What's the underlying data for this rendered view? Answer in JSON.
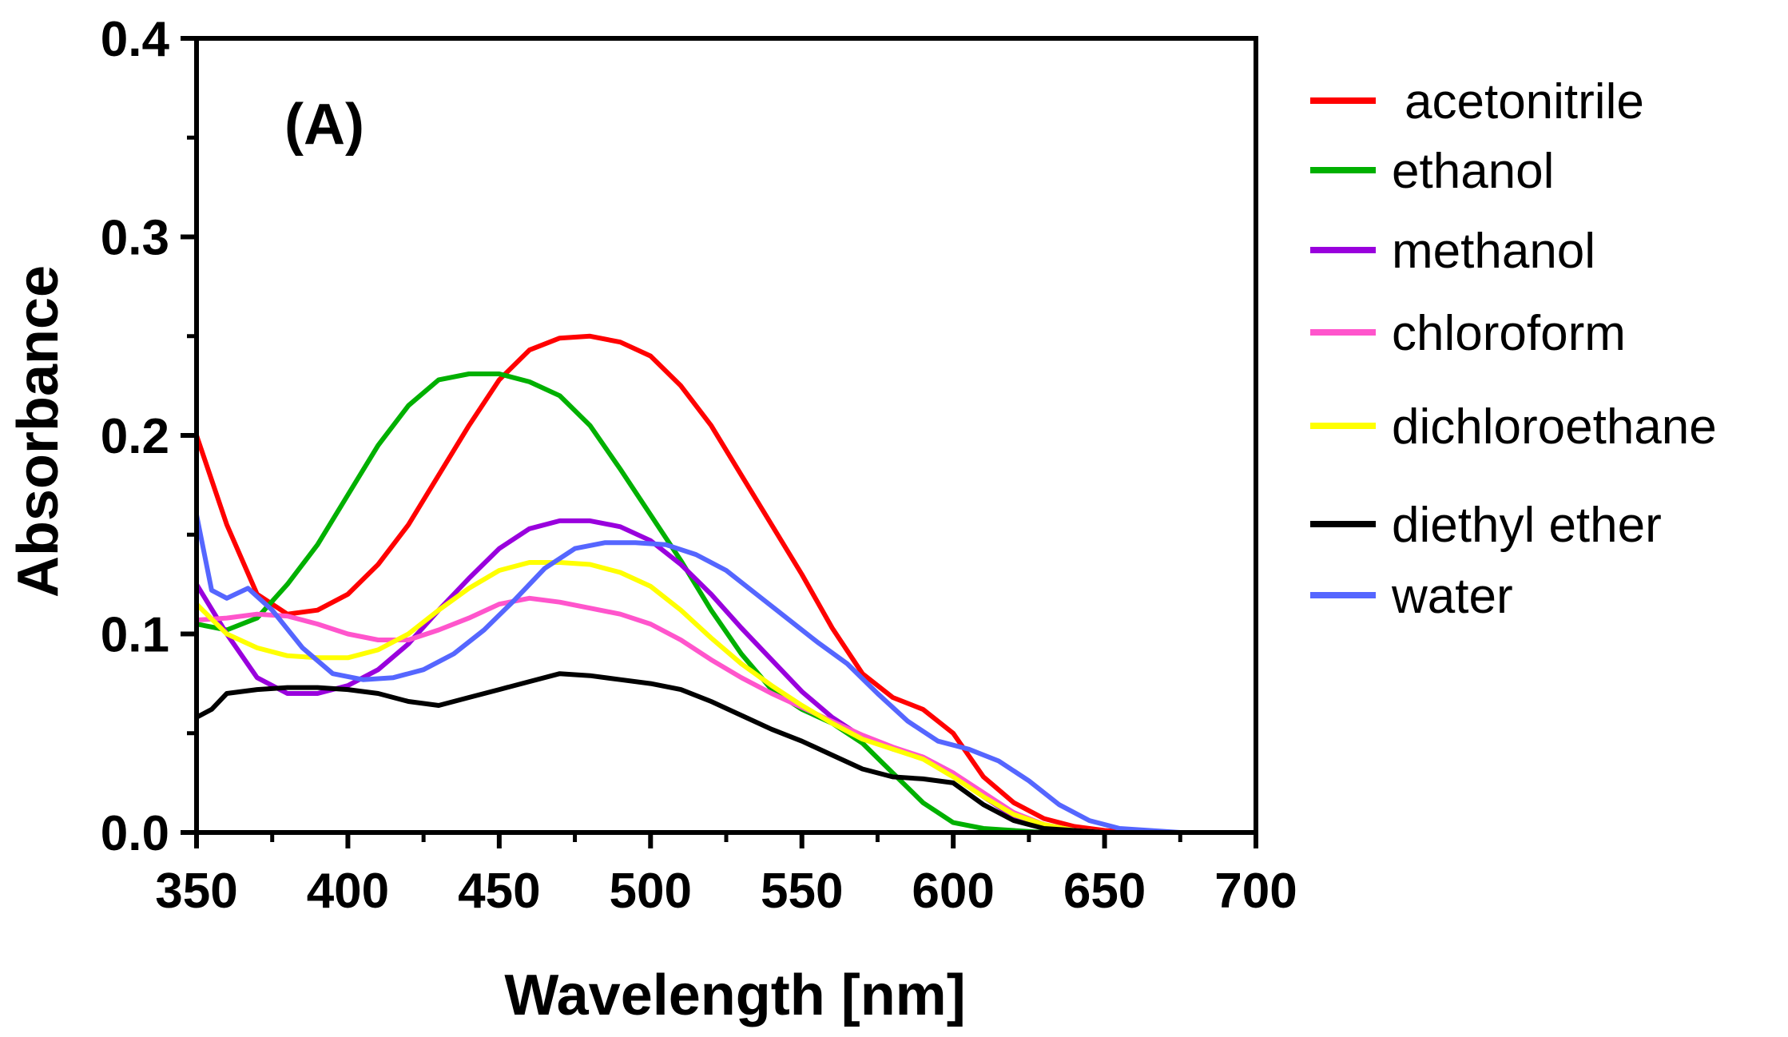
{
  "chart_data": {
    "type": "line",
    "title": "",
    "panel_label": "(A)",
    "xlabel": "Wavelength [nm]",
    "ylabel": "Absorbance",
    "xlim": [
      350,
      700
    ],
    "ylim": [
      0,
      0.4
    ],
    "x_ticks": [
      350,
      400,
      450,
      500,
      550,
      600,
      650,
      700
    ],
    "x_tick_labels": [
      "350",
      "400",
      "450",
      "500",
      "550",
      "600",
      "650",
      "700"
    ],
    "y_ticks": [
      0,
      0.1,
      0.2,
      0.3,
      0.4
    ],
    "y_tick_labels": [
      "0.0",
      "0.1",
      "0.2",
      "0.3",
      "0.4"
    ],
    "grid": false,
    "legend_position": "right",
    "series": [
      {
        "name": "acetonitrile",
        "color": "#ff0000",
        "x": [
          350,
          360,
          370,
          380,
          390,
          400,
          410,
          420,
          430,
          440,
          450,
          460,
          470,
          480,
          490,
          500,
          510,
          520,
          530,
          540,
          550,
          560,
          570,
          580,
          590,
          600,
          610,
          620,
          630,
          640,
          650,
          660,
          670
        ],
        "y": [
          0.2,
          0.155,
          0.12,
          0.11,
          0.112,
          0.12,
          0.135,
          0.155,
          0.18,
          0.205,
          0.228,
          0.243,
          0.249,
          0.25,
          0.247,
          0.24,
          0.225,
          0.205,
          0.18,
          0.155,
          0.13,
          0.103,
          0.08,
          0.068,
          0.062,
          0.05,
          0.028,
          0.015,
          0.007,
          0.003,
          0.001,
          0.0,
          0.0
        ]
      },
      {
        "name": "ethanol",
        "color": "#00b000",
        "x": [
          350,
          360,
          370,
          380,
          390,
          400,
          410,
          420,
          430,
          440,
          450,
          460,
          470,
          480,
          490,
          500,
          510,
          520,
          530,
          540,
          550,
          560,
          570,
          580,
          590,
          600,
          610,
          620,
          630,
          640,
          650,
          660,
          670,
          680,
          690,
          700
        ],
        "y": [
          0.105,
          0.102,
          0.108,
          0.125,
          0.145,
          0.17,
          0.195,
          0.215,
          0.228,
          0.231,
          0.231,
          0.227,
          0.22,
          0.205,
          0.183,
          0.16,
          0.137,
          0.112,
          0.09,
          0.072,
          0.062,
          0.055,
          0.045,
          0.03,
          0.015,
          0.005,
          0.002,
          0.001,
          0.0,
          0.0,
          0.0,
          0.0,
          0.0,
          0.0,
          0.0,
          0.0
        ]
      },
      {
        "name": "methanol",
        "color": "#9900dd",
        "x": [
          350,
          360,
          370,
          380,
          390,
          400,
          410,
          420,
          430,
          440,
          450,
          460,
          470,
          480,
          490,
          500,
          510,
          520,
          530,
          540,
          550,
          560,
          570,
          580,
          590,
          600,
          610,
          620,
          630,
          640,
          650,
          660
        ],
        "y": [
          0.125,
          0.1,
          0.078,
          0.07,
          0.07,
          0.074,
          0.082,
          0.095,
          0.112,
          0.128,
          0.143,
          0.153,
          0.157,
          0.157,
          0.154,
          0.147,
          0.135,
          0.12,
          0.103,
          0.087,
          0.071,
          0.058,
          0.048,
          0.042,
          0.038,
          0.03,
          0.018,
          0.008,
          0.003,
          0.001,
          0.0,
          0.0
        ]
      },
      {
        "name": "chloroform",
        "color": "#ff55cc",
        "x": [
          350,
          360,
          370,
          380,
          390,
          400,
          410,
          420,
          430,
          440,
          450,
          460,
          470,
          480,
          490,
          500,
          510,
          520,
          530,
          540,
          550,
          560,
          570,
          580,
          590,
          600,
          610,
          620,
          630,
          640,
          650,
          660
        ],
        "y": [
          0.107,
          0.108,
          0.11,
          0.109,
          0.105,
          0.1,
          0.097,
          0.097,
          0.102,
          0.108,
          0.115,
          0.118,
          0.116,
          0.113,
          0.11,
          0.105,
          0.097,
          0.087,
          0.078,
          0.07,
          0.063,
          0.056,
          0.049,
          0.043,
          0.038,
          0.03,
          0.02,
          0.01,
          0.004,
          0.001,
          0.0,
          0.0
        ]
      },
      {
        "name": "dichloroethane",
        "color": "#ffff00",
        "x": [
          350,
          360,
          370,
          380,
          390,
          400,
          410,
          420,
          430,
          440,
          450,
          460,
          470,
          480,
          490,
          500,
          510,
          520,
          530,
          540,
          550,
          560,
          570,
          580,
          590,
          600,
          610,
          620,
          630,
          640,
          650,
          660
        ],
        "y": [
          0.115,
          0.1,
          0.093,
          0.089,
          0.088,
          0.088,
          0.092,
          0.1,
          0.112,
          0.123,
          0.132,
          0.136,
          0.136,
          0.135,
          0.131,
          0.124,
          0.112,
          0.098,
          0.085,
          0.074,
          0.064,
          0.055,
          0.047,
          0.042,
          0.037,
          0.028,
          0.018,
          0.009,
          0.004,
          0.001,
          0.0,
          0.0
        ]
      },
      {
        "name": "diethyl ether",
        "color": "#000000",
        "x": [
          350,
          355,
          360,
          370,
          380,
          390,
          400,
          410,
          420,
          430,
          440,
          450,
          460,
          470,
          480,
          490,
          500,
          510,
          520,
          530,
          540,
          550,
          560,
          570,
          580,
          590,
          600,
          610,
          620,
          630,
          640,
          650,
          660
        ],
        "y": [
          0.058,
          0.062,
          0.07,
          0.072,
          0.073,
          0.073,
          0.072,
          0.07,
          0.066,
          0.064,
          0.068,
          0.072,
          0.076,
          0.08,
          0.079,
          0.077,
          0.075,
          0.072,
          0.066,
          0.059,
          0.052,
          0.046,
          0.039,
          0.032,
          0.028,
          0.027,
          0.025,
          0.014,
          0.006,
          0.002,
          0.001,
          0.0,
          0.0
        ]
      },
      {
        "name": "water",
        "color": "#5566ff",
        "x": [
          350,
          355,
          360,
          367,
          375,
          385,
          395,
          405,
          415,
          425,
          435,
          445,
          455,
          465,
          475,
          485,
          495,
          505,
          515,
          525,
          535,
          545,
          555,
          565,
          575,
          585,
          595,
          605,
          615,
          625,
          635,
          645,
          655,
          665,
          675
        ],
        "y": [
          0.16,
          0.122,
          0.118,
          0.123,
          0.112,
          0.093,
          0.08,
          0.077,
          0.078,
          0.082,
          0.09,
          0.102,
          0.117,
          0.133,
          0.143,
          0.146,
          0.146,
          0.145,
          0.14,
          0.132,
          0.12,
          0.108,
          0.096,
          0.085,
          0.07,
          0.056,
          0.046,
          0.042,
          0.036,
          0.026,
          0.014,
          0.006,
          0.002,
          0.001,
          0.0
        ]
      }
    ]
  }
}
